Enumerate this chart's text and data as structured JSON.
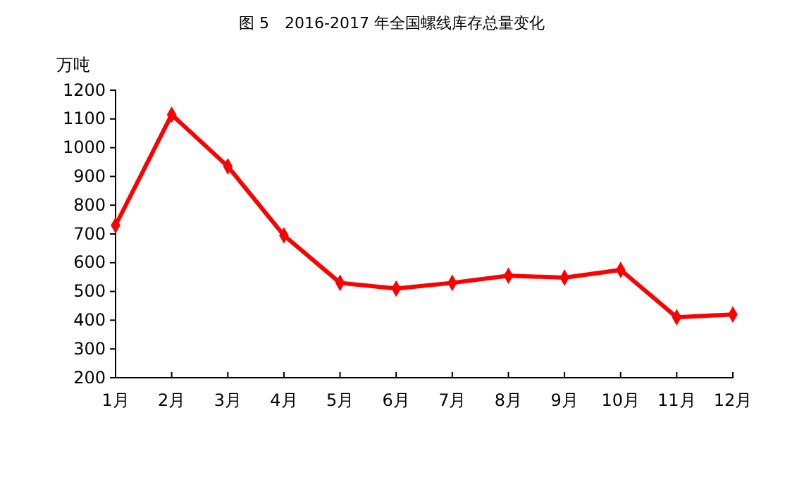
{
  "chart_data": {
    "type": "line",
    "title": "图 5　2016-2017 年全国螺线库存总量变化",
    "ylabel": "万吨",
    "categories": [
      "1月",
      "2月",
      "3月",
      "4月",
      "5月",
      "6月",
      "7月",
      "8月",
      "9月",
      "10月",
      "11月",
      "12月"
    ],
    "series": [
      {
        "color": "#ff0000",
        "values": [
          730,
          1115,
          935,
          695,
          530,
          510,
          530,
          555,
          548,
          575,
          410,
          420
        ]
      }
    ],
    "ylim": [
      200,
      1200
    ],
    "yticks": [
      200,
      300,
      400,
      500,
      600,
      700,
      800,
      900,
      1000,
      1100,
      1200
    ],
    "grid": false,
    "marker": "diamond",
    "line_style": "solid"
  }
}
